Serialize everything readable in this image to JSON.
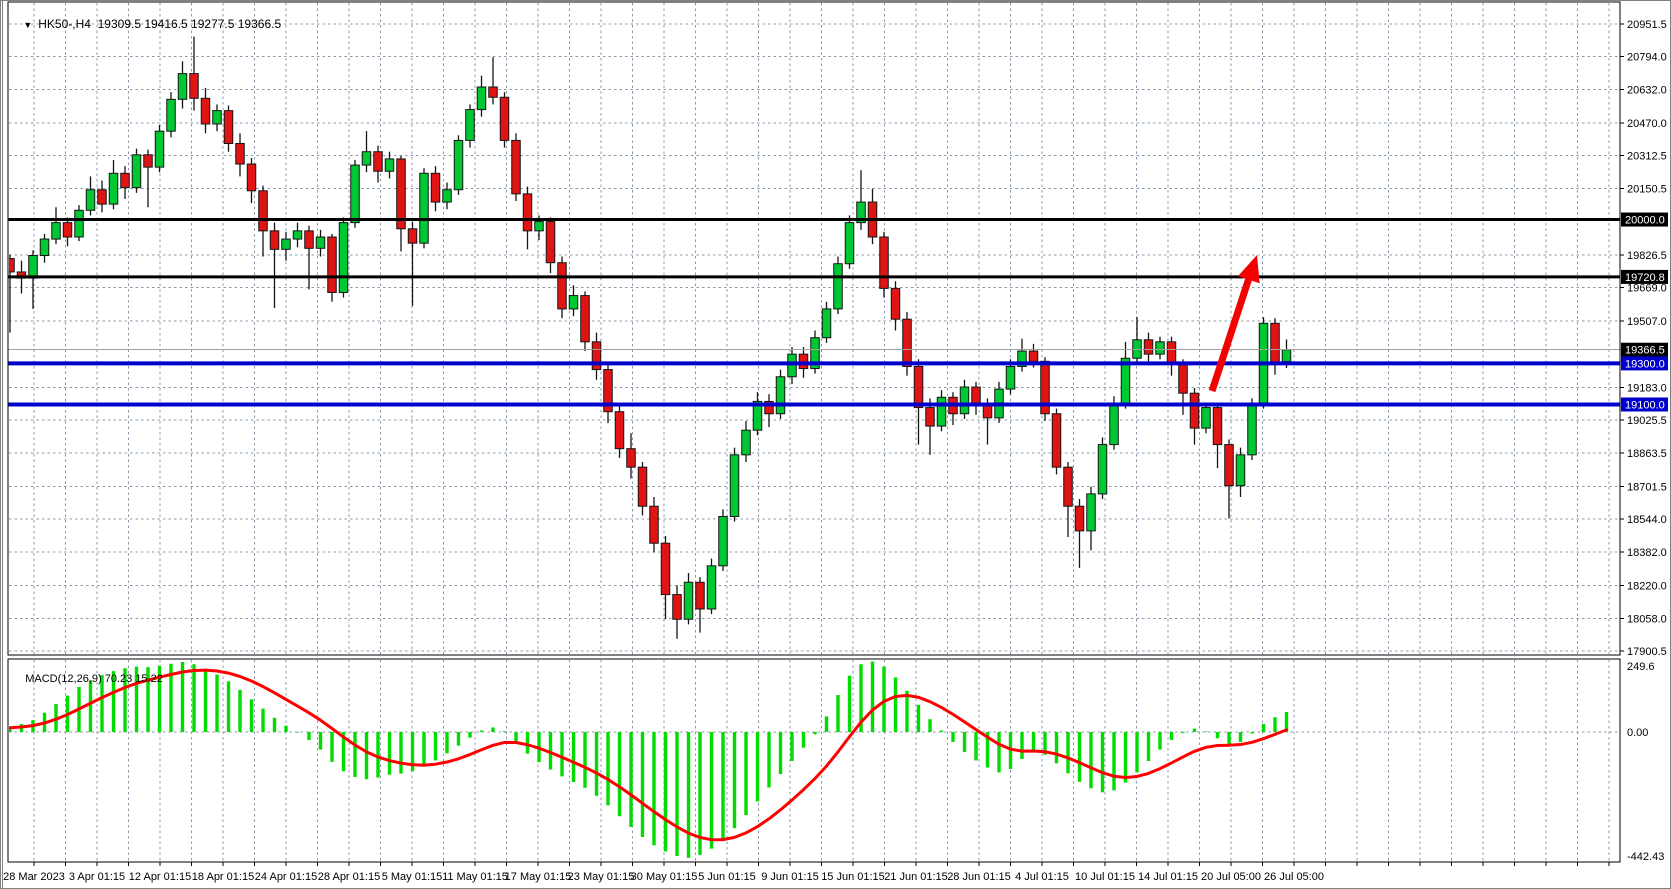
{
  "chart": {
    "symbol_period": "HK50-,H4",
    "ohlc_text": "19309.5 19416.5 19277.5 19366.5",
    "dropdown_icon": "▼"
  },
  "macd_panel": {
    "label": "MACD(12,26,9)",
    "value": "70.23",
    "signal_value": "15.22",
    "axis_top": "249.6",
    "axis_zero": "0.00",
    "axis_bottom": "-442.43"
  },
  "price_axis": {
    "ticks": [
      "20951.5",
      "20794.0",
      "20632.0",
      "20470.0",
      "20312.5",
      "20150.5",
      "19826.5",
      "19669.0",
      "19507.0",
      "19183.0",
      "19025.5",
      "18863.5",
      "18701.5",
      "18544.0",
      "18382.0",
      "18220.0",
      "18058.0",
      "17900.5"
    ],
    "tags": [
      {
        "label": "20000.0",
        "price": 20000.0,
        "bg": "#000000"
      },
      {
        "label": "19720.8",
        "price": 19720.8,
        "bg": "#000000"
      },
      {
        "label": "19366.5",
        "price": 19366.5,
        "bg": "#000000"
      },
      {
        "label": "19300.0",
        "price": 19300.0,
        "bg": "#0000CC"
      },
      {
        "label": "19100.0",
        "price": 19100.0,
        "bg": "#0000CC"
      }
    ]
  },
  "levels": {
    "black_lines": [
      20000.0,
      19720.8
    ],
    "blue_lines": [
      19300.0,
      19100.0
    ],
    "current_price_line": 19366.5
  },
  "annotations": {
    "arrow": {
      "from_price": 19090,
      "to_price": 19740,
      "color": "#F50000"
    }
  },
  "colors": {
    "grid": "#8899AC",
    "bull": "#00C832",
    "bear": "#E11414",
    "candle_outline": "#151515",
    "macd_hist": "#00DC00",
    "macd_signal": "#FF0000",
    "blue_level": "#0000CC",
    "black_level": "#000000",
    "current_line": "#A0A0A0",
    "border": "#000000",
    "frame": "#808080"
  },
  "chart_data": {
    "type": "candlestick",
    "symbol": "HK50-",
    "timeframe": "H4",
    "title": "HK50-,H4 19309.5 19416.5 19277.5 19366.5",
    "current_bar": {
      "open": 19309.5,
      "high": 19416.5,
      "low": 19277.5,
      "close": 19366.5
    },
    "price_range": [
      17900.5,
      20951.5
    ],
    "grid_on": true,
    "time_labels": [
      "28 Mar 2023",
      "3 Apr 01:15",
      "12 Apr 01:15",
      "18 Apr 01:15",
      "24 Apr 01:15",
      "28 Apr 01:15",
      "5 May 01:15",
      "11 May 01:15",
      "17 May 01:15",
      "23 May 01:15",
      "30 May 01:15",
      "5 Jun 01:15",
      "9 Jun 01:15",
      "15 Jun 01:15",
      "21 Jun 01:15",
      "28 Jun 01:15",
      "4 Jul 01:15",
      "10 Jul 01:15",
      "14 Jul 01:15",
      "20 Jul 05:00",
      "26 Jul 05:00"
    ],
    "candles": [
      [
        19810,
        19830,
        19450,
        19745
      ],
      [
        19745,
        19800,
        19640,
        19715
      ],
      [
        19715,
        19850,
        19565,
        19825
      ],
      [
        19825,
        19930,
        19790,
        19905
      ],
      [
        19905,
        20060,
        19880,
        19985
      ],
      [
        19985,
        20010,
        19870,
        19915
      ],
      [
        19915,
        20070,
        19895,
        20045
      ],
      [
        20045,
        20210,
        20020,
        20145
      ],
      [
        20145,
        20190,
        20035,
        20075
      ],
      [
        20075,
        20290,
        20050,
        20225
      ],
      [
        20225,
        20260,
        20100,
        20155
      ],
      [
        20155,
        20345,
        20130,
        20315
      ],
      [
        20315,
        20340,
        20060,
        20255
      ],
      [
        20255,
        20460,
        20230,
        20430
      ],
      [
        20430,
        20620,
        20400,
        20585
      ],
      [
        20585,
        20770,
        20540,
        20710
      ],
      [
        20710,
        20890,
        20530,
        20590
      ],
      [
        20590,
        20640,
        20420,
        20465
      ],
      [
        20465,
        20560,
        20430,
        20530
      ],
      [
        20530,
        20555,
        20330,
        20370
      ],
      [
        20370,
        20420,
        20210,
        20270
      ],
      [
        20270,
        20300,
        20080,
        20140
      ],
      [
        20140,
        20165,
        19820,
        19945
      ],
      [
        19945,
        19985,
        19570,
        19855
      ],
      [
        19855,
        19940,
        19800,
        19905
      ],
      [
        19905,
        19985,
        19865,
        19945
      ],
      [
        19945,
        19970,
        19660,
        19860
      ],
      [
        19860,
        19950,
        19820,
        19915
      ],
      [
        19915,
        19930,
        19600,
        19645
      ],
      [
        19645,
        20010,
        19620,
        19985
      ],
      [
        19985,
        20290,
        19960,
        20265
      ],
      [
        20265,
        20430,
        20230,
        20330
      ],
      [
        20330,
        20360,
        20180,
        20235
      ],
      [
        20235,
        20330,
        20200,
        20295
      ],
      [
        20295,
        20310,
        19845,
        19955
      ],
      [
        19955,
        19990,
        19580,
        19885
      ],
      [
        19885,
        20250,
        19860,
        20225
      ],
      [
        20225,
        20260,
        20040,
        20085
      ],
      [
        20085,
        20180,
        20050,
        20145
      ],
      [
        20145,
        20410,
        20120,
        20385
      ],
      [
        20385,
        20560,
        20350,
        20535
      ],
      [
        20535,
        20700,
        20500,
        20645
      ],
      [
        20645,
        20790,
        20560,
        20595
      ],
      [
        20595,
        20620,
        20350,
        20385
      ],
      [
        20385,
        20420,
        20090,
        20125
      ],
      [
        20125,
        20160,
        19855,
        19945
      ],
      [
        19945,
        20020,
        19900,
        19990
      ],
      [
        19990,
        20010,
        19740,
        19790
      ],
      [
        19790,
        19820,
        19520,
        19565
      ],
      [
        19565,
        19680,
        19530,
        19630
      ],
      [
        19630,
        19650,
        19360,
        19405
      ],
      [
        19405,
        19450,
        19220,
        19270
      ],
      [
        19270,
        19300,
        19010,
        19065
      ],
      [
        19065,
        19100,
        18840,
        18885
      ],
      [
        18885,
        18960,
        18740,
        18795
      ],
      [
        18795,
        18820,
        18560,
        18605
      ],
      [
        18605,
        18650,
        18380,
        18425
      ],
      [
        18425,
        18460,
        18055,
        18175
      ],
      [
        18175,
        18220,
        17960,
        18055
      ],
      [
        18055,
        18280,
        18030,
        18235
      ],
      [
        18235,
        18260,
        17990,
        18105
      ],
      [
        18105,
        18350,
        18080,
        18315
      ],
      [
        18315,
        18590,
        18290,
        18555
      ],
      [
        18555,
        18890,
        18530,
        18855
      ],
      [
        18855,
        19020,
        18820,
        18975
      ],
      [
        18975,
        19160,
        18950,
        19115
      ],
      [
        19115,
        19150,
        18990,
        19055
      ],
      [
        19055,
        19270,
        19030,
        19235
      ],
      [
        19235,
        19380,
        19200,
        19345
      ],
      [
        19345,
        19380,
        19230,
        19275
      ],
      [
        19275,
        19460,
        19250,
        19425
      ],
      [
        19425,
        19600,
        19400,
        19565
      ],
      [
        19565,
        19820,
        19540,
        19785
      ],
      [
        19785,
        20020,
        19760,
        19985
      ],
      [
        19985,
        20240,
        19950,
        20085
      ],
      [
        20085,
        20150,
        19880,
        19915
      ],
      [
        19915,
        19940,
        19620,
        19665
      ],
      [
        19665,
        19700,
        19460,
        19515
      ],
      [
        19515,
        19550,
        19240,
        19285
      ],
      [
        19285,
        19320,
        18905,
        19085
      ],
      [
        19085,
        19130,
        18855,
        18995
      ],
      [
        18995,
        19170,
        18970,
        19135
      ],
      [
        19135,
        19160,
        19000,
        19055
      ],
      [
        19055,
        19220,
        19030,
        19185
      ],
      [
        19185,
        19210,
        19050,
        19105
      ],
      [
        19105,
        19130,
        18905,
        19035
      ],
      [
        19035,
        19210,
        19010,
        19175
      ],
      [
        19175,
        19320,
        19150,
        19285
      ],
      [
        19285,
        19420,
        19260,
        19360
      ],
      [
        19360,
        19395,
        19280,
        19310
      ],
      [
        19310,
        19330,
        19020,
        19055
      ],
      [
        19055,
        19080,
        18760,
        18795
      ],
      [
        18795,
        18820,
        18455,
        18605
      ],
      [
        18605,
        18640,
        18305,
        18485
      ],
      [
        18485,
        18700,
        18390,
        18665
      ],
      [
        18665,
        18940,
        18640,
        18905
      ],
      [
        18905,
        19140,
        18880,
        19105
      ],
      [
        19105,
        19405,
        19080,
        19325
      ],
      [
        19325,
        19525,
        19300,
        19415
      ],
      [
        19415,
        19450,
        19290,
        19345
      ],
      [
        19345,
        19430,
        19320,
        19405
      ],
      [
        19405,
        19430,
        19240,
        19295
      ],
      [
        19295,
        19320,
        19050,
        19155
      ],
      [
        19155,
        19180,
        18905,
        18985
      ],
      [
        18985,
        19110,
        18960,
        19085
      ],
      [
        19085,
        19110,
        18790,
        18905
      ],
      [
        18905,
        18930,
        18545,
        18705
      ],
      [
        18705,
        18890,
        18650,
        18855
      ],
      [
        18855,
        19130,
        18830,
        19105
      ],
      [
        19105,
        19525,
        19080,
        19495
      ],
      [
        19495,
        19520,
        19245,
        19305
      ],
      [
        19309.5,
        19416.5,
        19277.5,
        19366.5
      ]
    ],
    "indicator": {
      "type": "MACD",
      "params": "12,26,9",
      "range": [
        -442.43,
        249.6
      ],
      "last_value": 70.23,
      "last_signal": 15.22,
      "values": [
        15,
        28,
        42,
        68,
        98,
        128,
        158,
        182,
        200,
        214,
        224,
        230,
        228,
        233,
        240,
        246,
        238,
        222,
        202,
        178,
        148,
        115,
        82,
        50,
        22,
        -2,
        -28,
        -62,
        -105,
        -138,
        -158,
        -166,
        -160,
        -150,
        -146,
        -138,
        -122,
        -100,
        -75,
        -48,
        -20,
        5,
        16,
        3,
        -38,
        -76,
        -106,
        -132,
        -156,
        -176,
        -196,
        -224,
        -258,
        -296,
        -334,
        -369,
        -398,
        -420,
        -436,
        -442.43,
        -432,
        -410,
        -378,
        -338,
        -292,
        -244,
        -195,
        -148,
        -102,
        -55,
        -8,
        55,
        130,
        198,
        238,
        248,
        230,
        192,
        145,
        95,
        45,
        5,
        -35,
        -70,
        -100,
        -125,
        -142,
        -130,
        -95,
        -65,
        -80,
        -110,
        -145,
        -175,
        -198,
        -212,
        -205,
        -178,
        -142,
        -102,
        -62,
        -28,
        -4,
        12,
        2,
        -22,
        -42,
        -35,
        -5,
        28,
        52,
        70.23
      ]
    }
  }
}
